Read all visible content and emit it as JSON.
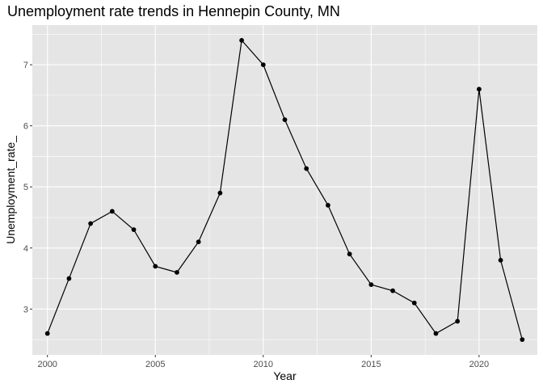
{
  "chart_data": {
    "type": "line",
    "title": "Unemployment rate trends in Hennepin County, MN",
    "xlabel": "Year",
    "ylabel": "Unemployment_rate_",
    "xlim": [
      1999.3,
      2022.7
    ],
    "ylim": [
      2.25,
      7.65
    ],
    "x_ticks": [
      2000,
      2005,
      2010,
      2015,
      2020
    ],
    "y_ticks": [
      3,
      4,
      5,
      6,
      7
    ],
    "x_tick_labels": [
      "2000",
      "2005",
      "2010",
      "2015",
      "2020"
    ],
    "y_tick_labels": [
      "3",
      "4",
      "5",
      "6",
      "7"
    ],
    "grid": true,
    "legend": "none",
    "colors": {
      "panel": "#e5e5e5",
      "grid": "#ffffff",
      "line": "#000000",
      "point": "#000000"
    },
    "x": [
      2000,
      2001,
      2002,
      2003,
      2004,
      2005,
      2006,
      2007,
      2008,
      2009,
      2010,
      2011,
      2012,
      2013,
      2014,
      2015,
      2016,
      2017,
      2018,
      2019,
      2020,
      2021,
      2022
    ],
    "y": [
      2.6,
      3.5,
      4.4,
      4.6,
      4.3,
      3.7,
      3.6,
      4.1,
      4.9,
      7.4,
      7.0,
      6.1,
      5.3,
      4.7,
      3.9,
      3.4,
      3.3,
      3.1,
      2.6,
      2.8,
      6.6,
      3.8,
      2.5
    ]
  }
}
